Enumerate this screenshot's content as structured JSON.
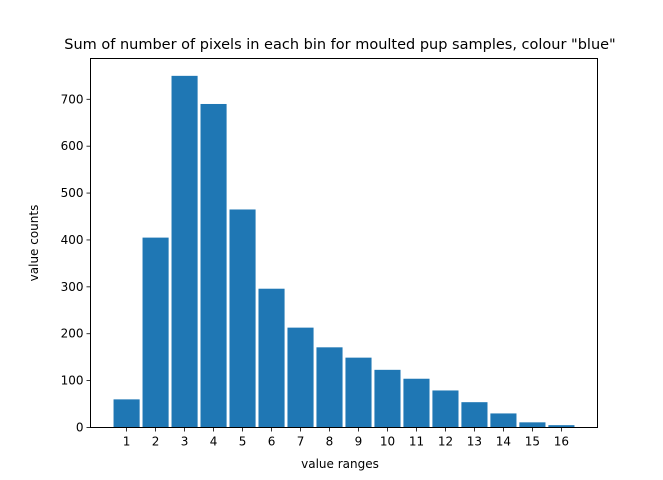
{
  "chart_data": {
    "type": "bar",
    "title": "Sum of number of pixels in each bin for moulted pup samples, colour \"blue\"",
    "xlabel": "value ranges",
    "ylabel": "value counts",
    "categories": [
      "1",
      "2",
      "3",
      "4",
      "5",
      "6",
      "7",
      "8",
      "9",
      "10",
      "11",
      "12",
      "13",
      "14",
      "15",
      "16"
    ],
    "values": [
      60,
      405,
      750,
      690,
      465,
      296,
      213,
      171,
      149,
      123,
      104,
      79,
      54,
      30,
      11,
      5
    ],
    "ylim": [
      0,
      787
    ],
    "yticks": [
      0,
      100,
      200,
      300,
      400,
      500,
      600,
      700
    ],
    "bar_color": "#1f77b4",
    "grid": false,
    "legend": "none"
  }
}
